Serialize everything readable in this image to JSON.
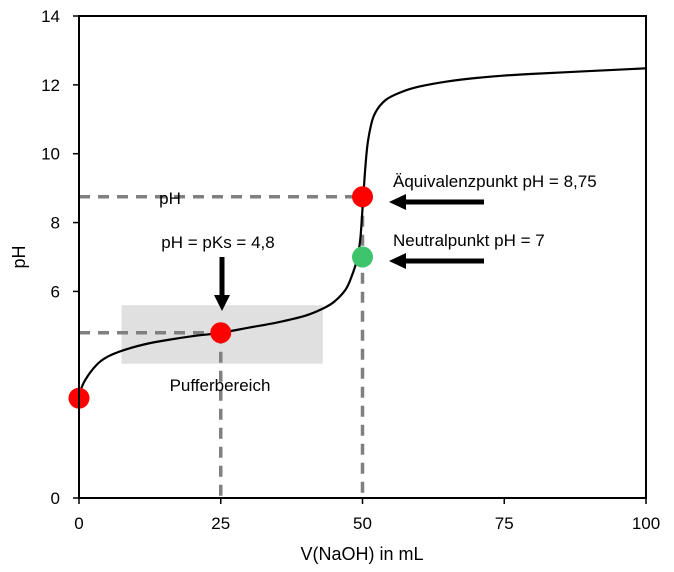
{
  "chart_data": {
    "type": "line",
    "xlabel": "V(NaOH) in mL",
    "ylabel": "pH",
    "xlim": [
      0,
      100
    ],
    "ylim": [
      0,
      14
    ],
    "x_ticks": [
      "0",
      "25",
      "50",
      "75",
      "100"
    ],
    "y_ticks": [
      "0",
      "6",
      "8",
      "10",
      "12",
      "14"
    ],
    "y_tick_values": [
      0,
      6,
      8,
      10,
      12,
      14
    ],
    "grid": false,
    "series": [
      {
        "x": [
          0,
          1,
          3,
          5,
          8,
          12,
          16,
          20,
          25,
          30,
          35,
          40,
          43,
          45,
          47,
          48,
          49,
          49.6,
          50,
          50.5,
          51,
          52,
          54,
          57,
          60,
          65,
          70,
          75,
          80,
          90,
          100
        ],
        "values": [
          3.0,
          3.4,
          3.85,
          4.1,
          4.3,
          4.48,
          4.6,
          4.7,
          4.8,
          4.95,
          5.1,
          5.3,
          5.5,
          5.7,
          6.05,
          6.4,
          6.9,
          7.5,
          8.4,
          9.6,
          10.4,
          11.1,
          11.55,
          11.8,
          11.95,
          12.1,
          12.2,
          12.27,
          12.32,
          12.4,
          12.48
        ],
        "color": "#000000"
      }
    ],
    "points": [
      {
        "x": 0,
        "y": 2.9,
        "color": "#ff0000"
      },
      {
        "x": 25,
        "y": 4.8,
        "color": "#ff0000"
      },
      {
        "x": 50,
        "y": 8.75,
        "color": "#ff0000"
      },
      {
        "x": 50,
        "y": 7,
        "color": "#3ec46d"
      }
    ],
    "buffer_region": {
      "x": [
        7.5,
        43
      ],
      "y": [
        3.9,
        5.6
      ],
      "label": "Pufferbereich",
      "color": "#e0e0e0"
    },
    "reference_lines": [
      {
        "from": [
          0,
          8.75
        ],
        "to": [
          50,
          8.75
        ]
      },
      {
        "from": [
          0,
          4.8
        ],
        "to": [
          25,
          4.8
        ]
      },
      {
        "from": [
          25,
          4.8
        ],
        "to": [
          25,
          0
        ]
      },
      {
        "from": [
          50,
          8.75
        ],
        "to": [
          50,
          0
        ]
      }
    ],
    "annotations": {
      "equivalence": "Äquivalenzpunkt pH = 8,75",
      "neutral": "Neutralpunkt  pH = 7",
      "pks": "pH = pKs = 4,8",
      "ph": "pH"
    }
  }
}
